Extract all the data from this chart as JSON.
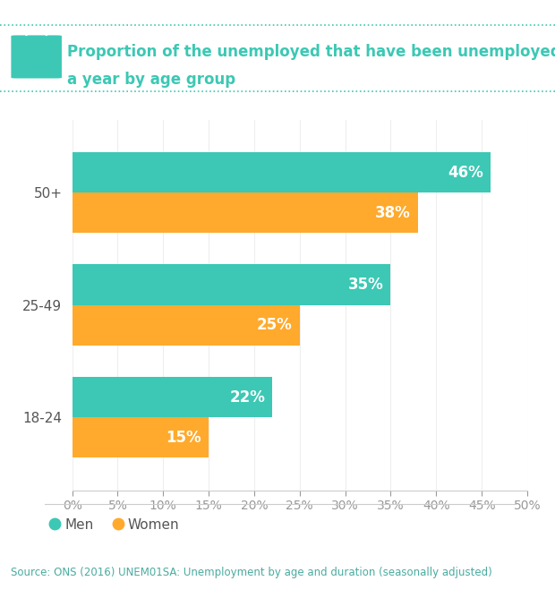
{
  "title_line1": "Proportion of the unemployed that have been unemployed for at least",
  "title_line2": "a year by age group",
  "age_groups": [
    "18-24",
    "25-49",
    "50+"
  ],
  "men_values": [
    22,
    35,
    46
  ],
  "women_values": [
    15,
    25,
    38
  ],
  "men_color": "#3CC8B4",
  "women_color": "#FFAA2C",
  "bar_height": 0.36,
  "xlim": [
    0,
    50
  ],
  "xticks": [
    0,
    5,
    10,
    15,
    20,
    25,
    30,
    35,
    40,
    45,
    50
  ],
  "source_text": "Source: ONS (2016) UNEM01SA: Unemployment by age and duration (seasonally adjusted)",
  "source_bg": "#B2E4DE",
  "background_color": "#FFFFFF",
  "title_color": "#3CC8B4",
  "axis_tick_color": "#999999",
  "title_fontsize": 12,
  "legend_labels": [
    "Men",
    "Women"
  ],
  "bar_label_fontsize": 12,
  "dotted_line_color": "#3CC8B4",
  "source_text_color": "#4AACA0",
  "ytick_fontsize": 11,
  "xtick_fontsize": 10
}
